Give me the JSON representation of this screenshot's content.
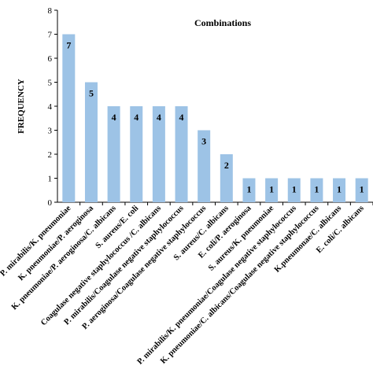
{
  "chart_data": {
    "type": "bar",
    "title": "Combinations",
    "xlabel": "",
    "ylabel": "FREQUENCY",
    "ylim": [
      0,
      8
    ],
    "yticks": [
      0,
      1,
      2,
      3,
      4,
      5,
      6,
      7,
      8
    ],
    "grid": false,
    "bar_color": "#9dc3e6",
    "categories": [
      "P. mirabilis/K. pneumoniae",
      "K. pneumoniae/P. aeroginosa",
      "K. pneumoniae/P. aeroginosa/C. albicans",
      "S. aureus/E. coli",
      "Coagulase negative staphylococcus /C. albicans",
      "P. mirabilis/Coagulase negative staphylococcus",
      "P. aeroginosa/Coagulase negative staphylococcus",
      "S. aureus/C. albicans",
      "E. coli/P. aeroginosa",
      "S. aureus/K. pneumoniae",
      "P. mirabilis/K. pneumoniae/Coagulase negative staphylococcus",
      "K. pneumoniae/C. albicans/Coagulase negative staphylococcus",
      "K.pneumonae/C. albicans",
      "E. coli/C. albicans"
    ],
    "values": [
      7,
      5,
      4,
      4,
      4,
      4,
      3,
      2,
      1,
      1,
      1,
      1,
      1,
      1
    ]
  }
}
